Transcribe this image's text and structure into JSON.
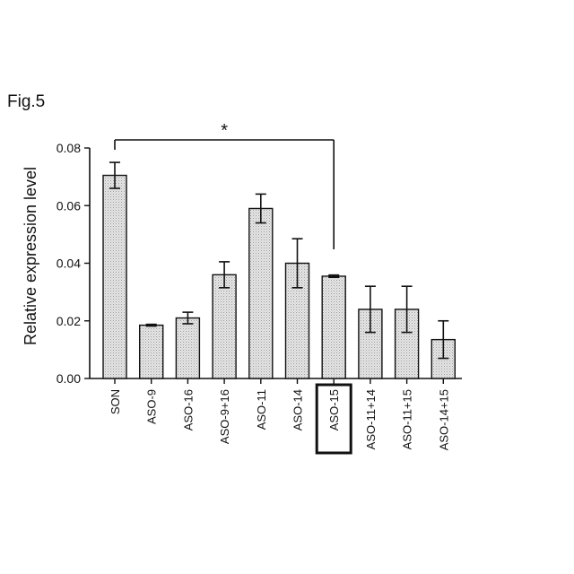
{
  "figure_label": "Fig.5",
  "chart_data": {
    "type": "bar",
    "title": "",
    "xlabel": "",
    "ylabel": "Relative expression level",
    "ylim": [
      0,
      0.08
    ],
    "yticks": [
      "0.00",
      "0.02",
      "0.04",
      "0.06",
      "0.08"
    ],
    "categories": [
      "SON",
      "ASO-9",
      "ASO-16",
      "ASO-9+16",
      "ASO-11",
      "ASO-14",
      "ASO-15",
      "ASO-11+14",
      "ASO-11+15",
      "ASO-14+15"
    ],
    "values": [
      0.0705,
      0.0185,
      0.021,
      0.036,
      0.059,
      0.04,
      0.0355,
      0.024,
      0.024,
      0.0135
    ],
    "errors": [
      0.0045,
      0.0003,
      0.002,
      0.0045,
      0.005,
      0.0085,
      0.0004,
      0.008,
      0.008,
      0.0065
    ],
    "highlighted_category": "ASO-15",
    "significance": {
      "from": "SON",
      "to": "ASO-15",
      "label": "*"
    },
    "bar_fill": "#d9d9d9",
    "grid": false
  }
}
